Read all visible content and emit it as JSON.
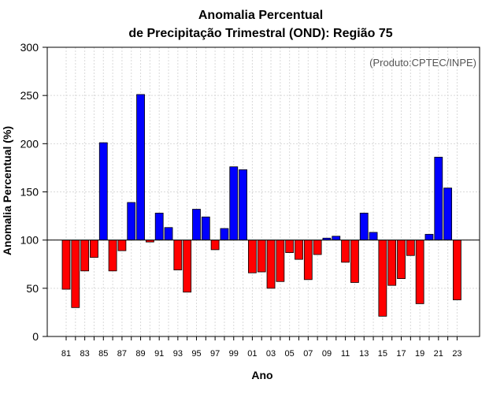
{
  "chart_data": {
    "type": "bar",
    "title_line1": "Anomalia Percentual",
    "title_line2": "de Precipitação Trimestral (OND): Região 75",
    "xlabel": "Ano",
    "ylabel": "Anomalia Percentual (%)",
    "credit": "(Produto:CPTEC/INPE)",
    "baseline": 100,
    "ylim": [
      0,
      300
    ],
    "yticks": [
      0,
      50,
      100,
      150,
      200,
      250,
      300
    ],
    "ytick_labels": [
      "0",
      "50",
      "100",
      "150",
      "200",
      "250",
      "300"
    ],
    "categories": [
      "1981",
      "1982",
      "1983",
      "1984",
      "1985",
      "1986",
      "1987",
      "1988",
      "1989",
      "1990",
      "1991",
      "1992",
      "1993",
      "1994",
      "1995",
      "1996",
      "1997",
      "1998",
      "1999",
      "2000",
      "2001",
      "2002",
      "2003",
      "2004",
      "2005",
      "2006",
      "2007",
      "2008",
      "2009",
      "2010",
      "2011",
      "2012",
      "2013",
      "2014",
      "2015",
      "2016",
      "2017",
      "2018",
      "2019",
      "2020",
      "2021",
      "2022",
      "2023"
    ],
    "values": [
      49,
      30,
      68,
      82,
      201,
      68,
      89,
      139,
      251,
      98,
      128,
      113,
      69,
      46,
      132,
      124,
      90,
      112,
      176,
      173,
      66,
      67,
      50,
      57,
      87,
      80,
      59,
      85,
      102,
      104,
      77,
      56,
      128,
      108,
      21,
      53,
      60,
      84,
      34,
      106,
      186,
      154,
      38
    ],
    "xtick_labels": [
      "81",
      "83",
      "85",
      "87",
      "89",
      "91",
      "93",
      "95",
      "97",
      "99",
      "01",
      "03",
      "05",
      "07",
      "09",
      "11",
      "13",
      "15",
      "17",
      "19",
      "21",
      "23"
    ],
    "colors": {
      "above": "#0000ff",
      "below": "#ff0000",
      "grid": "#d9d9d9",
      "axis": "#000000"
    }
  }
}
